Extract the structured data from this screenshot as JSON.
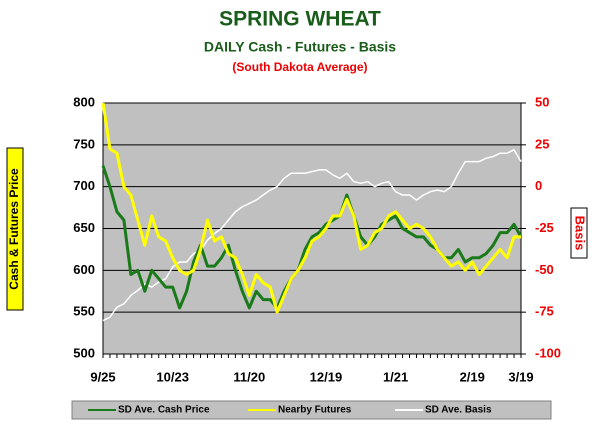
{
  "chart_data": {
    "type": "line",
    "title": "SPRING WHEAT",
    "subtitle": "DAILY Cash - Futures - Basis",
    "subtitle2": "(South Dakota Average)",
    "ylabel": "Cash & Futures Price",
    "y2label": "Basis",
    "categories": [
      "9/25",
      null,
      null,
      null,
      null,
      null,
      null,
      null,
      null,
      null,
      "10/23",
      null,
      null,
      null,
      null,
      null,
      null,
      null,
      null,
      null,
      null,
      "11/20",
      null,
      null,
      null,
      null,
      null,
      null,
      null,
      null,
      null,
      null,
      "12/19",
      null,
      null,
      null,
      null,
      null,
      null,
      null,
      null,
      null,
      "1/21",
      null,
      null,
      null,
      null,
      null,
      null,
      null,
      null,
      null,
      null,
      "2/19",
      null,
      null,
      null,
      null,
      null,
      null,
      "3/19"
    ],
    "series": [
      {
        "name": "SD Ave. Cash Price",
        "color": "#1a7a1a",
        "axis": "y",
        "values": [
          725,
          700,
          670,
          660,
          595,
          600,
          575,
          600,
          590,
          580,
          580,
          555,
          575,
          610,
          630,
          605,
          605,
          615,
          630,
          600,
          575,
          555,
          575,
          565,
          565,
          555,
          575,
          590,
          600,
          625,
          640,
          645,
          655,
          660,
          665,
          690,
          665,
          640,
          630,
          640,
          655,
          660,
          665,
          650,
          645,
          640,
          640,
          630,
          625,
          615,
          615,
          625,
          610,
          615,
          615,
          620,
          630,
          645,
          645,
          655,
          640
        ]
      },
      {
        "name": "Nearby Futures",
        "color": "#ffff00",
        "axis": "y",
        "values": [
          800,
          745,
          740,
          700,
          690,
          660,
          630,
          665,
          640,
          635,
          615,
          600,
          595,
          600,
          625,
          660,
          635,
          640,
          620,
          615,
          595,
          570,
          595,
          585,
          580,
          550,
          570,
          590,
          600,
          615,
          635,
          640,
          650,
          665,
          665,
          685,
          665,
          625,
          630,
          645,
          650,
          665,
          670,
          660,
          650,
          655,
          650,
          640,
          625,
          615,
          605,
          610,
          600,
          610,
          595,
          605,
          615,
          625,
          615,
          640,
          640
        ]
      },
      {
        "name": "SD Ave. Basis",
        "color": "#ffffff",
        "axis": "y2",
        "values": [
          -80,
          -78,
          -72,
          -70,
          -65,
          -62,
          -58,
          -60,
          -57,
          -55,
          -48,
          -45,
          -45,
          -40,
          -38,
          -32,
          -28,
          -25,
          -20,
          -15,
          -12,
          -10,
          -8,
          -5,
          -2,
          0,
          5,
          8,
          8,
          8,
          9,
          10,
          10,
          7,
          5,
          8,
          3,
          2,
          3,
          0,
          2,
          3,
          -3,
          -5,
          -5,
          -8,
          -5,
          -3,
          -2,
          -3,
          0,
          8,
          15,
          15,
          15,
          17,
          18,
          20,
          20,
          22,
          15
        ]
      }
    ],
    "ylim": [
      500,
      800
    ],
    "yticks": [
      500,
      550,
      600,
      650,
      700,
      750,
      800
    ],
    "y2lim": [
      -100,
      50
    ],
    "y2ticks": [
      -100,
      -75,
      -50,
      -25,
      0,
      25,
      50
    ],
    "grid": true,
    "legend": "bottom"
  }
}
